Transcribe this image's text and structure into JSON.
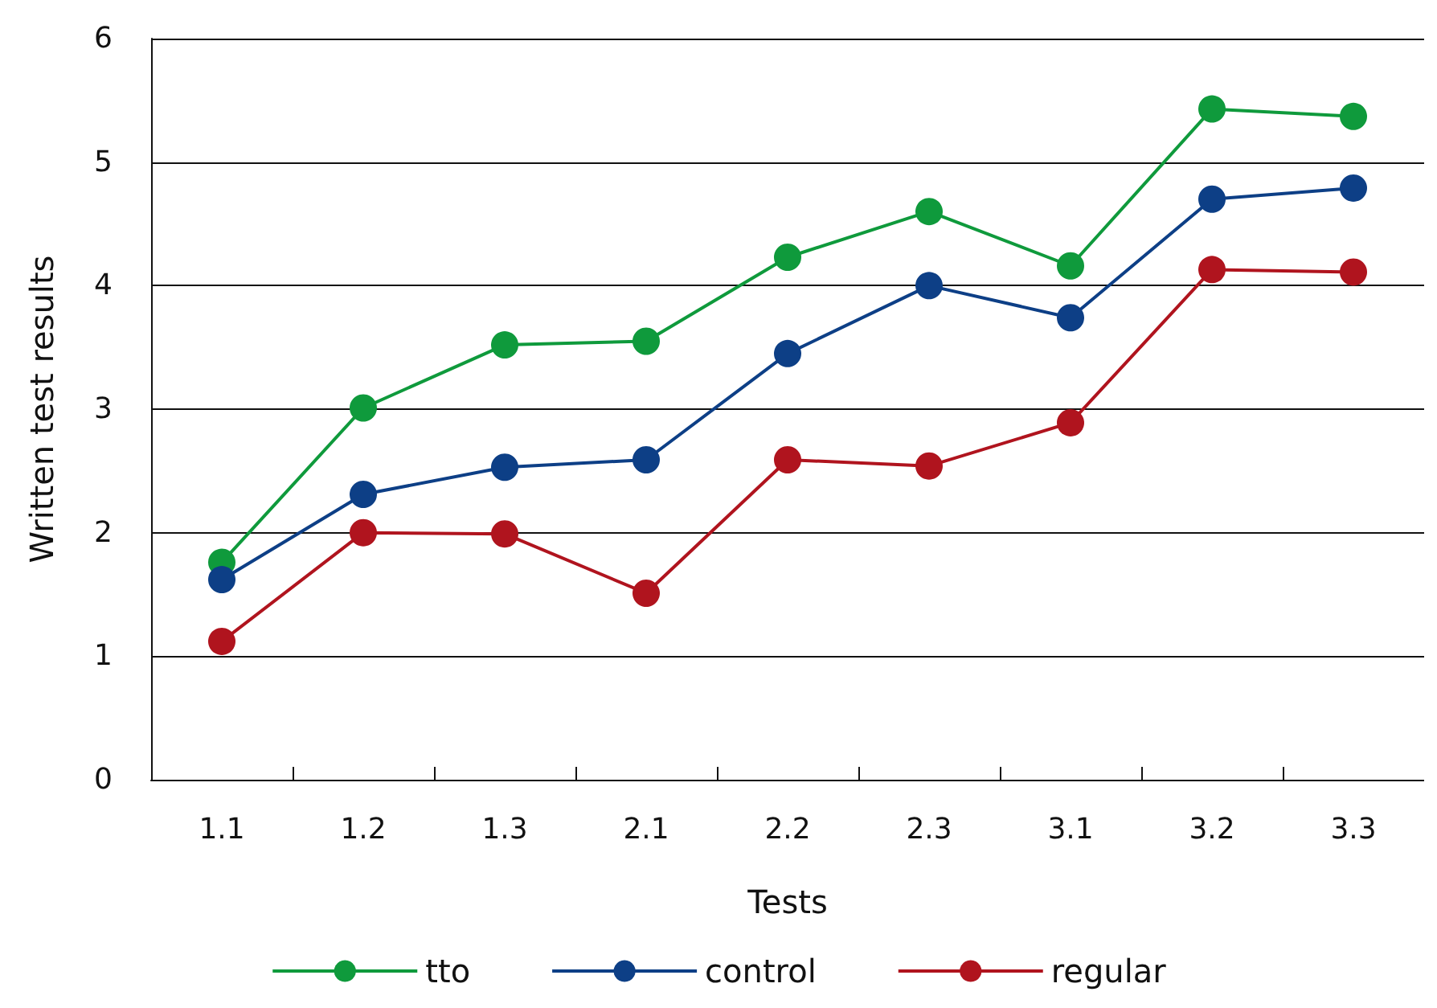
{
  "chart_data": {
    "type": "line",
    "xlabel": "Tests",
    "ylabel": "Written test results",
    "categories": [
      "1.1",
      "1.2",
      "1.3",
      "2.1",
      "2.2",
      "2.3",
      "3.1",
      "3.2",
      "3.3"
    ],
    "series": [
      {
        "name": "tto",
        "color": "#0f9a3c",
        "values": [
          1.76,
          3.01,
          3.52,
          3.55,
          4.23,
          4.6,
          4.16,
          5.43,
          5.37
        ]
      },
      {
        "name": "control",
        "color": "#0d3f86",
        "values": [
          1.62,
          2.31,
          2.53,
          2.59,
          3.45,
          4.0,
          3.74,
          4.7,
          4.79
        ]
      },
      {
        "name": "regular",
        "color": "#b0141e",
        "values": [
          1.12,
          2.0,
          1.99,
          1.51,
          2.59,
          2.54,
          2.89,
          4.13,
          4.11
        ]
      }
    ],
    "ylim": [
      0,
      6
    ],
    "yticks": [
      0,
      1,
      2,
      3,
      4,
      5,
      6
    ],
    "grid": "y",
    "legend": "bottom",
    "marker": "circle",
    "line_style": "solid"
  }
}
